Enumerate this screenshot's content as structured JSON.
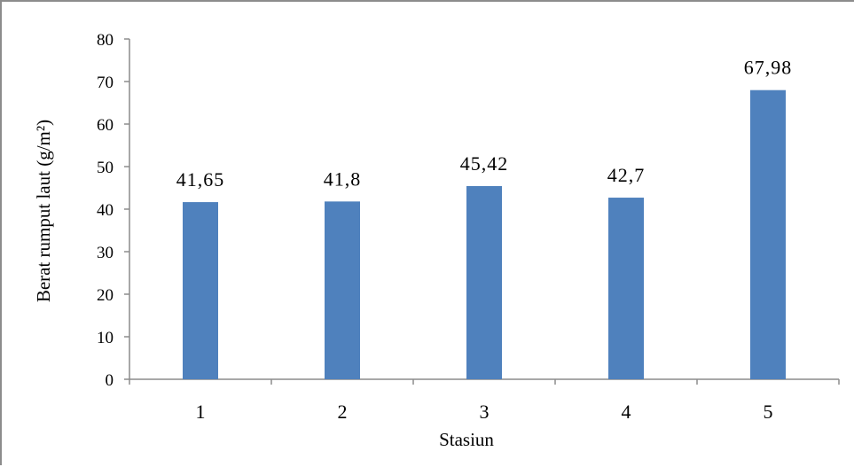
{
  "chart_data": {
    "type": "bar",
    "categories": [
      "1",
      "2",
      "3",
      "4",
      "5"
    ],
    "values": [
      41.65,
      41.8,
      45.42,
      42.7,
      67.98
    ],
    "data_labels": [
      "41,65",
      "41,8",
      "45,42",
      "42,7",
      "67,98"
    ],
    "xlabel": "Stasiun",
    "ylabel": "Berat rumput laut (g/m²)",
    "ylim": [
      0,
      80
    ],
    "yticks": [
      0,
      10,
      20,
      30,
      40,
      50,
      60,
      70,
      80
    ],
    "bar_color": "#4f81bd",
    "grid": false,
    "legend": "none"
  }
}
